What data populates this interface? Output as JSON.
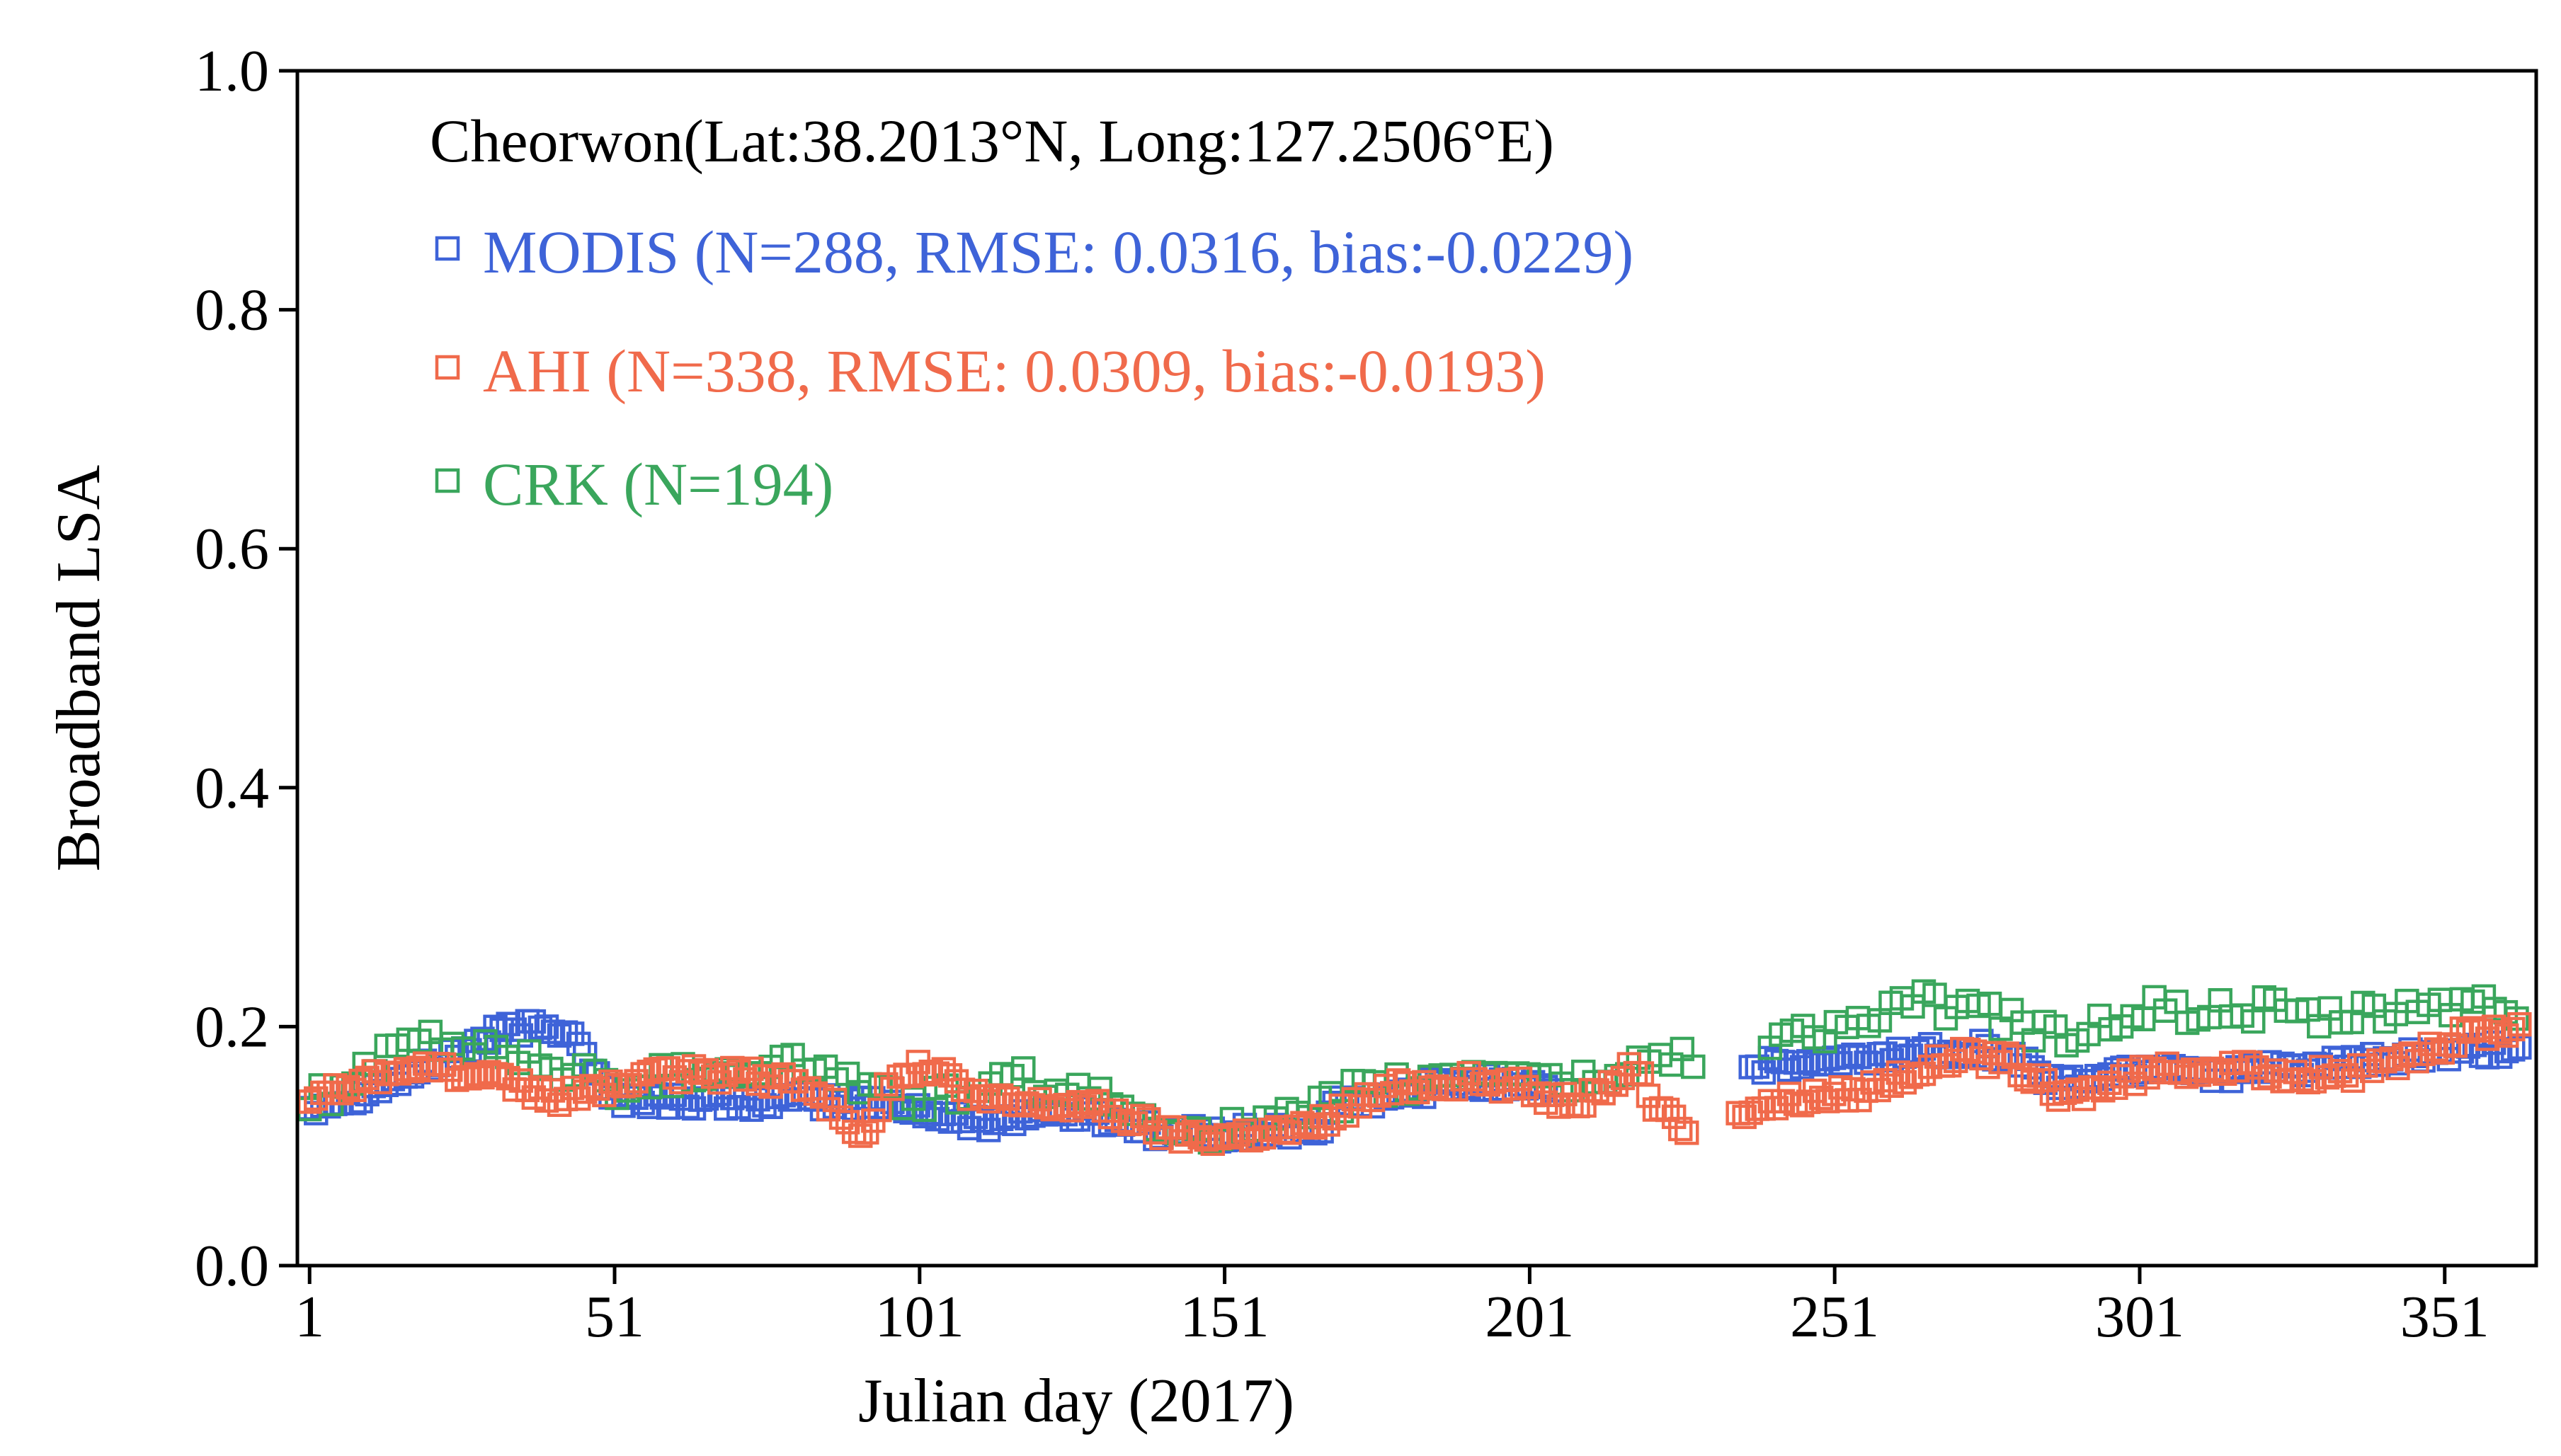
{
  "chart_data": {
    "type": "scatter",
    "title": "Cheorwon(Lat:38.2013°N, Long:127.2506°E)",
    "xlabel": "Julian day (2017)",
    "ylabel": "Broadband LSA",
    "xlim": [
      -1,
      366
    ],
    "ylim": [
      0.0,
      1.0
    ],
    "xticks": [
      1,
      51,
      101,
      151,
      201,
      251,
      301,
      351
    ],
    "xtick_labels": [
      "1",
      "51",
      "101",
      "151",
      "201",
      "251",
      "301",
      "351"
    ],
    "yticks": [
      0.0,
      0.2,
      0.4,
      0.6,
      0.8,
      1.0
    ],
    "ytick_labels": [
      "0.0",
      "0.2",
      "0.4",
      "0.6",
      "0.8",
      "1.0"
    ],
    "grid": false,
    "legend_position": "top-left",
    "marker": "open-square",
    "series": [
      {
        "name": "MODIS",
        "legend_label": "MODIS (N=288, RMSE: 0.0316, bias:-0.0229)",
        "color": "#3e63d8",
        "anchors": [
          [
            1,
            0.133
          ],
          [
            10,
            0.145
          ],
          [
            18,
            0.16
          ],
          [
            26,
            0.18
          ],
          [
            32,
            0.195
          ],
          [
            38,
            0.2
          ],
          [
            44,
            0.198
          ],
          [
            50,
            0.14
          ],
          [
            60,
            0.138
          ],
          [
            70,
            0.137
          ],
          [
            80,
            0.138
          ],
          [
            90,
            0.136
          ],
          [
            100,
            0.133
          ],
          [
            105,
            0.122
          ],
          [
            112,
            0.12
          ],
          [
            120,
            0.128
          ],
          [
            130,
            0.125
          ],
          [
            140,
            0.112
          ],
          [
            150,
            0.11
          ],
          [
            160,
            0.112
          ],
          [
            166,
            0.113
          ],
          [
            170,
            0.135
          ],
          [
            178,
            0.14
          ],
          [
            185,
            0.15
          ],
          [
            200,
            0.155
          ],
          [
            204,
            0.15
          ],
          [
            238,
            0.166
          ],
          [
            245,
            0.168
          ],
          [
            255,
            0.172
          ],
          [
            265,
            0.18
          ],
          [
            275,
            0.182
          ],
          [
            282,
            0.17
          ],
          [
            288,
            0.15
          ],
          [
            295,
            0.16
          ],
          [
            305,
            0.168
          ],
          [
            315,
            0.16
          ],
          [
            325,
            0.165
          ],
          [
            335,
            0.168
          ],
          [
            345,
            0.175
          ],
          [
            355,
            0.178
          ],
          [
            364,
            0.182
          ]
        ]
      },
      {
        "name": "AHI",
        "legend_label": "AHI (N=338, RMSE: 0.0309, bias:-0.0193)",
        "color": "#f06a4b",
        "anchors": [
          [
            1,
            0.14
          ],
          [
            10,
            0.155
          ],
          [
            18,
            0.17
          ],
          [
            26,
            0.16
          ],
          [
            35,
            0.15
          ],
          [
            42,
            0.14
          ],
          [
            50,
            0.15
          ],
          [
            60,
            0.16
          ],
          [
            70,
            0.16
          ],
          [
            80,
            0.155
          ],
          [
            88,
            0.13
          ],
          [
            92,
            0.11
          ],
          [
            96,
            0.15
          ],
          [
            100,
            0.165
          ],
          [
            105,
            0.16
          ],
          [
            110,
            0.14
          ],
          [
            118,
            0.135
          ],
          [
            128,
            0.135
          ],
          [
            135,
            0.125
          ],
          [
            142,
            0.11
          ],
          [
            150,
            0.108
          ],
          [
            158,
            0.112
          ],
          [
            165,
            0.115
          ],
          [
            172,
            0.135
          ],
          [
            180,
            0.15
          ],
          [
            190,
            0.155
          ],
          [
            200,
            0.15
          ],
          [
            205,
            0.14
          ],
          [
            212,
            0.14
          ],
          [
            218,
            0.17
          ],
          [
            222,
            0.13
          ],
          [
            226,
            0.115
          ],
          [
            236,
            0.13
          ],
          [
            245,
            0.14
          ],
          [
            255,
            0.145
          ],
          [
            265,
            0.165
          ],
          [
            272,
            0.175
          ],
          [
            280,
            0.17
          ],
          [
            288,
            0.14
          ],
          [
            295,
            0.15
          ],
          [
            305,
            0.165
          ],
          [
            315,
            0.165
          ],
          [
            325,
            0.16
          ],
          [
            335,
            0.16
          ],
          [
            345,
            0.17
          ],
          [
            355,
            0.195
          ],
          [
            364,
            0.2
          ]
        ]
      },
      {
        "name": "CRK",
        "legend_label": "CRK (N=194)",
        "color": "#3aa65c",
        "anchors": [
          [
            1,
            0.14
          ],
          [
            8,
            0.15
          ],
          [
            14,
            0.175
          ],
          [
            20,
            0.19
          ],
          [
            26,
            0.18
          ],
          [
            32,
            0.185
          ],
          [
            38,
            0.17
          ],
          [
            45,
            0.16
          ],
          [
            52,
            0.15
          ],
          [
            60,
            0.16
          ],
          [
            70,
            0.165
          ],
          [
            80,
            0.17
          ],
          [
            88,
            0.16
          ],
          [
            95,
            0.14
          ],
          [
            102,
            0.14
          ],
          [
            110,
            0.145
          ],
          [
            118,
            0.155
          ],
          [
            126,
            0.145
          ],
          [
            135,
            0.13
          ],
          [
            145,
            0.115
          ],
          [
            155,
            0.112
          ],
          [
            165,
            0.125
          ],
          [
            172,
            0.145
          ],
          [
            180,
            0.15
          ],
          [
            190,
            0.16
          ],
          [
            200,
            0.165
          ],
          [
            207,
            0.15
          ],
          [
            214,
            0.16
          ],
          [
            220,
            0.17
          ],
          [
            226,
            0.175
          ],
          [
            240,
            0.19
          ],
          [
            248,
            0.195
          ],
          [
            256,
            0.205
          ],
          [
            264,
            0.22
          ],
          [
            272,
            0.215
          ],
          [
            280,
            0.205
          ],
          [
            288,
            0.19
          ],
          [
            296,
            0.205
          ],
          [
            304,
            0.215
          ],
          [
            312,
            0.21
          ],
          [
            320,
            0.215
          ],
          [
            330,
            0.205
          ],
          [
            340,
            0.21
          ],
          [
            350,
            0.22
          ],
          [
            358,
            0.215
          ],
          [
            364,
            0.21
          ]
        ]
      }
    ]
  }
}
